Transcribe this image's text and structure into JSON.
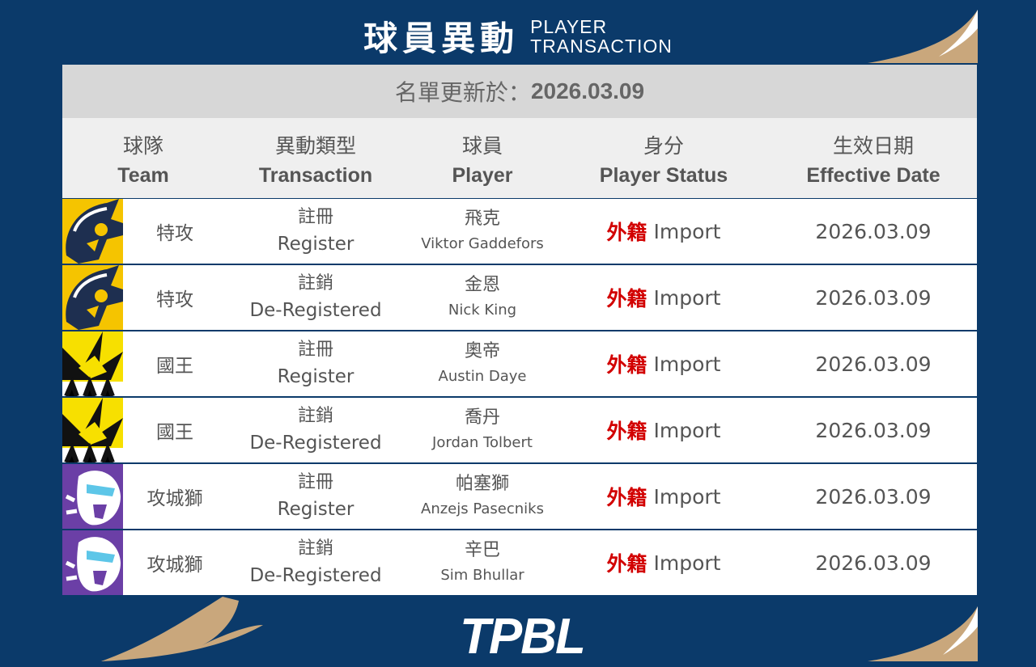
{
  "title": {
    "zh": "球員異動",
    "en_line1": "PLAYER",
    "en_line2": "TRANSACTION"
  },
  "update": {
    "label": "名單更新於：",
    "date": "2026.03.09"
  },
  "headers": [
    {
      "zh": "球隊",
      "en": "Team"
    },
    {
      "zh": "異動類型",
      "en": "Transaction"
    },
    {
      "zh": "球員",
      "en": "Player"
    },
    {
      "zh": "身分",
      "en": "Player Status"
    },
    {
      "zh": "生效日期",
      "en": "Effective Date"
    }
  ],
  "rows": [
    {
      "team_logo": "taoyuan-leopards-logo",
      "team": "特攻",
      "type_zh": "註冊",
      "type_en": "Register",
      "player_zh": "飛克",
      "player_en": "Viktor Gaddefors",
      "status_zh": "外籍",
      "status_en": "Import",
      "date": "2026.03.09"
    },
    {
      "team_logo": "taoyuan-leopards-logo",
      "team": "特攻",
      "type_zh": "註銷",
      "type_en": "De-Registered",
      "player_zh": "金恩",
      "player_en": "Nick King",
      "status_zh": "外籍",
      "status_en": "Import",
      "date": "2026.03.09"
    },
    {
      "team_logo": "kings-logo",
      "team": "國王",
      "type_zh": "註冊",
      "type_en": "Register",
      "player_zh": "奧帝",
      "player_en": "Austin Daye",
      "status_zh": "外籍",
      "status_en": "Import",
      "date": "2026.03.09"
    },
    {
      "team_logo": "kings-logo",
      "team": "國王",
      "type_zh": "註銷",
      "type_en": "De-Registered",
      "player_zh": "喬丹",
      "player_en": "Jordan Tolbert",
      "status_zh": "外籍",
      "status_en": "Import",
      "date": "2026.03.09"
    },
    {
      "team_logo": "lions-logo",
      "team": "攻城獅",
      "type_zh": "註冊",
      "type_en": "Register",
      "player_zh": "帕塞獅",
      "player_en": "Anzejs Pasecniks",
      "status_zh": "外籍",
      "status_en": "Import",
      "date": "2026.03.09"
    },
    {
      "team_logo": "lions-logo",
      "team": "攻城獅",
      "type_zh": "註銷",
      "type_en": "De-Registered",
      "player_zh": "辛巴",
      "player_en": "Sim Bhullar",
      "status_zh": "外籍",
      "status_en": "Import",
      "date": "2026.03.09"
    }
  ],
  "footer": {
    "logo": "TPBL"
  },
  "colors": {
    "background": "#0b3a6a",
    "accent_gold": "#c9a77c",
    "import_red": "#d20000"
  }
}
